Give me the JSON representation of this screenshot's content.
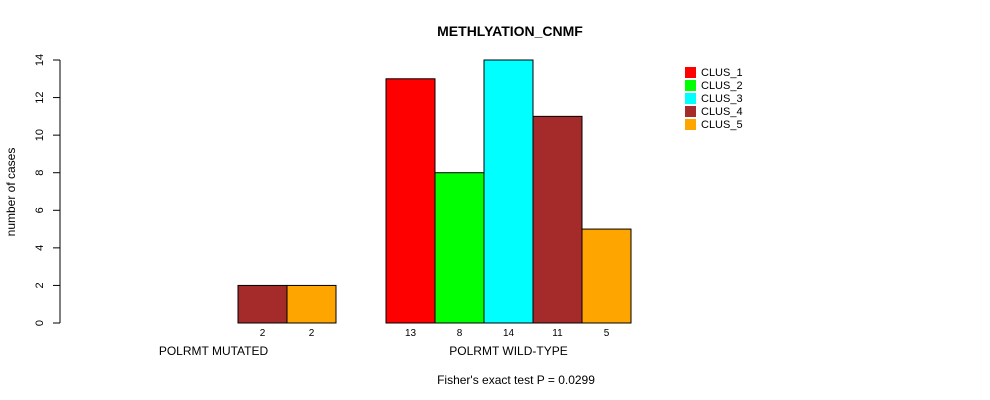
{
  "chart_data": {
    "type": "bar",
    "title": "METHLYATION_CNMF",
    "ylabel": "number of cases",
    "xlabel": "",
    "ylim": [
      0,
      14
    ],
    "yticks": [
      0,
      2,
      4,
      6,
      8,
      10,
      12,
      14
    ],
    "groups": [
      "POLRMT MUTATED",
      "POLRMT WILD-TYPE"
    ],
    "series": [
      {
        "name": "CLUS_1",
        "color": "#FF0000",
        "values": [
          0,
          13
        ]
      },
      {
        "name": "CLUS_2",
        "color": "#00FF00",
        "values": [
          0,
          8
        ]
      },
      {
        "name": "CLUS_3",
        "color": "#00FFFF",
        "values": [
          0,
          14
        ]
      },
      {
        "name": "CLUS_4",
        "color": "#A52A2A",
        "values": [
          2,
          11
        ]
      },
      {
        "name": "CLUS_5",
        "color": "#FFA500",
        "values": [
          2,
          5
        ]
      }
    ],
    "bar_value_labels": [
      [
        "",
        "",
        "",
        "2",
        "2"
      ],
      [
        "13",
        "8",
        "14",
        "11",
        "5"
      ]
    ],
    "legend_position": "right",
    "grid": false,
    "footnote": "Fisher's exact test P = 0.0299"
  }
}
